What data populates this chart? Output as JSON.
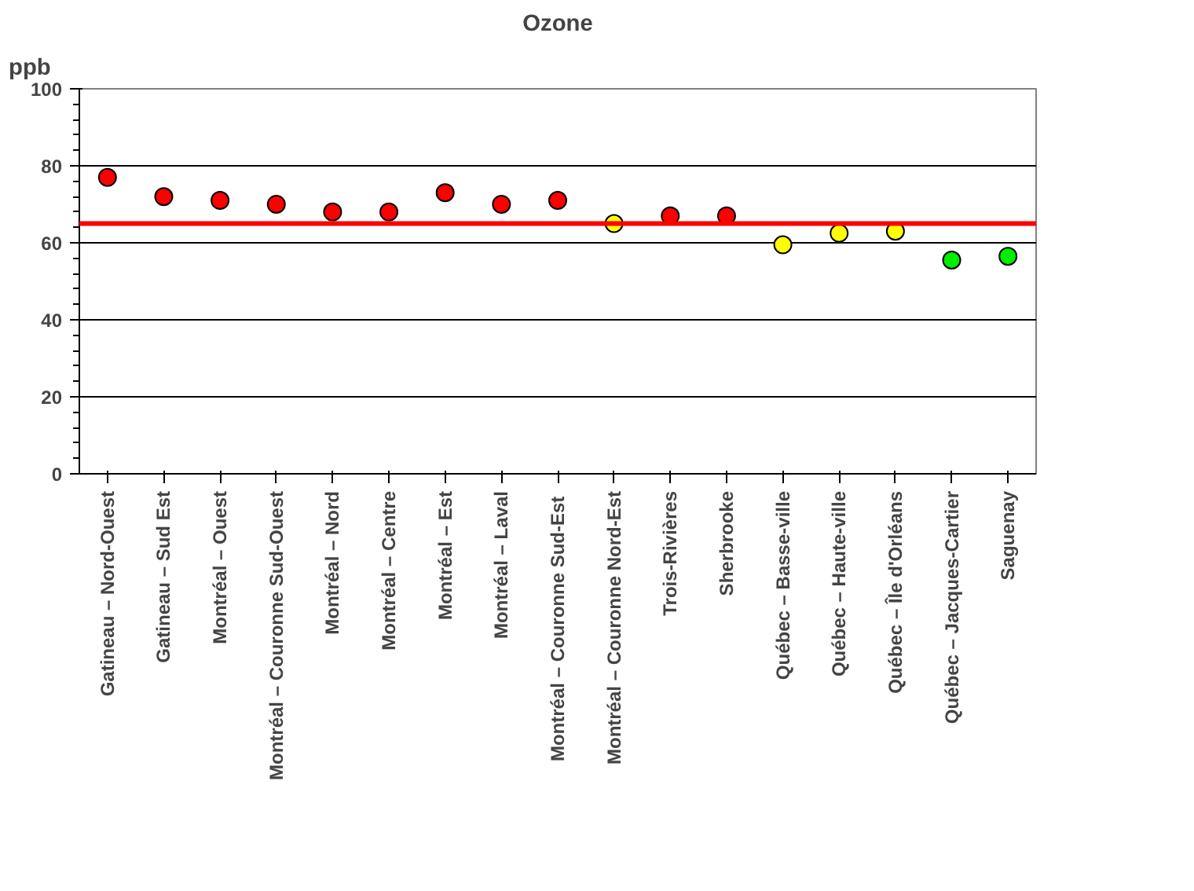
{
  "chart_data": {
    "type": "scatter",
    "title": "Ozone",
    "ylabel": "ppb",
    "categories": [
      "Gatineau – Nord-Ouest",
      "Gatineau – Sud Est",
      "Montréal – Ouest",
      "Montréal – Couronne Sud-Ouest",
      "Montréal – Nord",
      "Montréal – Centre",
      "Montréal – Est",
      "Montréal – Laval",
      "Montréal – Couronne  Sud-Est",
      "Montréal – Couronne Nord-Est",
      "Trois-Rivières",
      "Sherbrooke",
      "Québec – Basse-ville",
      "Québec – Haute-ville",
      "Québec – Île d'Orléans",
      "Québec – Jacques-Cartier",
      "Saguenay"
    ],
    "values": [
      77,
      72,
      71,
      70,
      68,
      68,
      73,
      70,
      71,
      65,
      67,
      67,
      59.5,
      62.5,
      63,
      55.5,
      56.5
    ],
    "colors": [
      "#ff0000",
      "#ff0000",
      "#ff0000",
      "#ff0000",
      "#ff0000",
      "#ff0000",
      "#ff0000",
      "#ff0000",
      "#ff0000",
      "#ffff00",
      "#ff0000",
      "#ff0000",
      "#ffff00",
      "#ffff00",
      "#ffff00",
      "#00ee00",
      "#00ee00"
    ],
    "ylim": [
      0,
      100
    ],
    "yticks": [
      0,
      20,
      40,
      60,
      80,
      100
    ],
    "grid": "y",
    "marker": "circle",
    "ref_lines": [
      {
        "axis": "y",
        "value": 65,
        "color": "#ff0000"
      }
    ]
  }
}
